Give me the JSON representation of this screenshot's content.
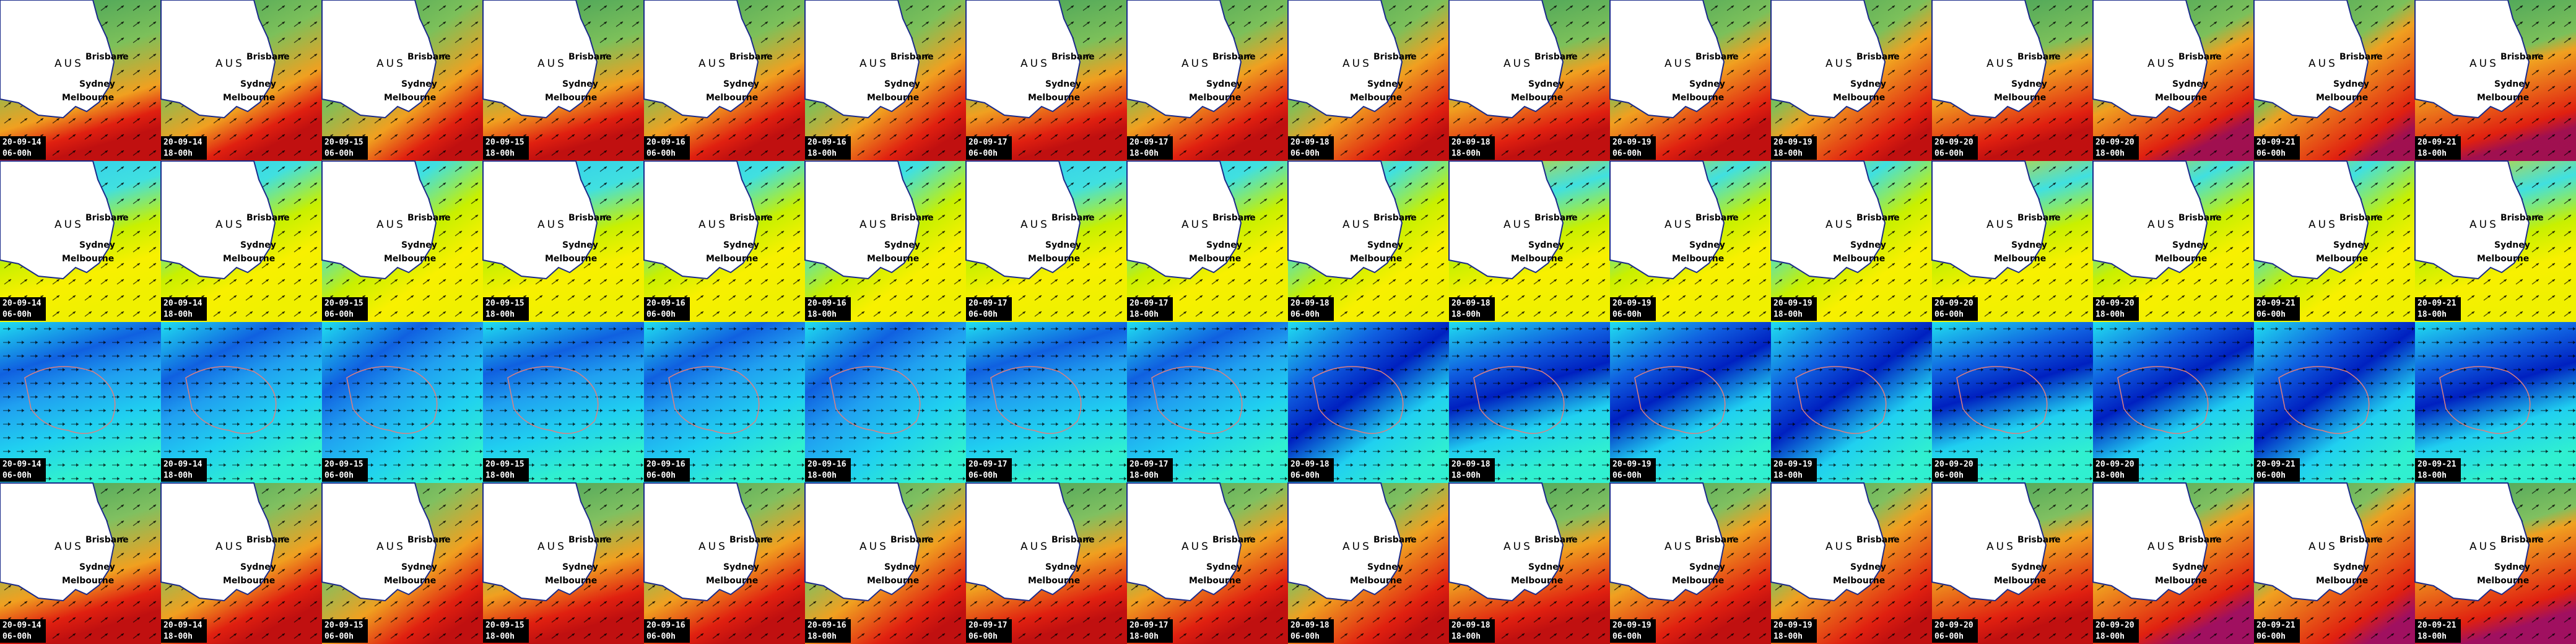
{
  "map_labels": {
    "country": "AUS",
    "city_north": "Brisbane",
    "city_east": "Sydney",
    "city_south": "Melbourne"
  },
  "rows": [
    {
      "tiles": [
        {
          "date": "20-09-14",
          "time": "06-00h"
        },
        {
          "date": "20-09-14",
          "time": "18-00h"
        },
        {
          "date": "20-09-15",
          "time": "06-00h"
        },
        {
          "date": "20-09-15",
          "time": "18-00h"
        },
        {
          "date": "20-09-16",
          "time": "06-00h"
        },
        {
          "date": "20-09-16",
          "time": "18-00h"
        },
        {
          "date": "20-09-17",
          "time": "06-00h"
        },
        {
          "date": "20-09-17",
          "time": "18-00h"
        },
        {
          "date": "20-09-18",
          "time": "06-00h"
        },
        {
          "date": "20-09-18",
          "time": "18-00h"
        },
        {
          "date": "20-09-19",
          "time": "06-00h"
        },
        {
          "date": "20-09-19",
          "time": "18-00h"
        },
        {
          "date": "20-09-20",
          "time": "06-00h"
        },
        {
          "date": "20-09-20",
          "time": "18-00h"
        },
        {
          "date": "20-09-21",
          "time": "06-00h"
        },
        {
          "date": "20-09-21",
          "time": "18-00h"
        }
      ]
    },
    {
      "tiles": [
        {
          "date": "20-09-14",
          "time": "06-00h"
        },
        {
          "date": "20-09-14",
          "time": "18-00h"
        },
        {
          "date": "20-09-15",
          "time": "06-00h"
        },
        {
          "date": "20-09-15",
          "time": "18-00h"
        },
        {
          "date": "20-09-16",
          "time": "06-00h"
        },
        {
          "date": "20-09-16",
          "time": "18-00h"
        },
        {
          "date": "20-09-17",
          "time": "06-00h"
        },
        {
          "date": "20-09-17",
          "time": "18-00h"
        },
        {
          "date": "20-09-18",
          "time": "06-00h"
        },
        {
          "date": "20-09-18",
          "time": "18-00h"
        },
        {
          "date": "20-09-19",
          "time": "06-00h"
        },
        {
          "date": "20-09-19",
          "time": "18-00h"
        },
        {
          "date": "20-09-20",
          "time": "06-00h"
        },
        {
          "date": "20-09-20",
          "time": "18-00h"
        },
        {
          "date": "20-09-21",
          "time": "06-00h"
        },
        {
          "date": "20-09-21",
          "time": "18-00h"
        }
      ]
    },
    {
      "tiles": [
        {
          "date": "20-09-14",
          "time": "06-00h"
        },
        {
          "date": "20-09-14",
          "time": "18-00h"
        },
        {
          "date": "20-09-15",
          "time": "06-00h"
        },
        {
          "date": "20-09-15",
          "time": "18-00h"
        },
        {
          "date": "20-09-16",
          "time": "06-00h"
        },
        {
          "date": "20-09-16",
          "time": "18-00h"
        },
        {
          "date": "20-09-17",
          "time": "06-00h"
        },
        {
          "date": "20-09-17",
          "time": "18-00h"
        },
        {
          "date": "20-09-18",
          "time": "06-00h"
        },
        {
          "date": "20-09-18",
          "time": "18-00h"
        },
        {
          "date": "20-09-19",
          "time": "06-00h"
        },
        {
          "date": "20-09-19",
          "time": "18-00h"
        },
        {
          "date": "20-09-20",
          "time": "06-00h"
        },
        {
          "date": "20-09-20",
          "time": "18-00h"
        },
        {
          "date": "20-09-21",
          "time": "06-00h"
        },
        {
          "date": "20-09-21",
          "time": "18-00h"
        }
      ]
    },
    {
      "tiles": [
        {
          "date": "20-09-14",
          "time": "06-00h"
        },
        {
          "date": "20-09-14",
          "time": "18-00h"
        },
        {
          "date": "20-09-15",
          "time": "06-00h"
        },
        {
          "date": "20-09-15",
          "time": "18-00h"
        },
        {
          "date": "20-09-16",
          "time": "06-00h"
        },
        {
          "date": "20-09-16",
          "time": "18-00h"
        },
        {
          "date": "20-09-17",
          "time": "06-00h"
        },
        {
          "date": "20-09-17",
          "time": "18-00h"
        },
        {
          "date": "20-09-18",
          "time": "06-00h"
        },
        {
          "date": "20-09-18",
          "time": "18-00h"
        },
        {
          "date": "20-09-19",
          "time": "06-00h"
        },
        {
          "date": "20-09-19",
          "time": "18-00h"
        },
        {
          "date": "20-09-20",
          "time": "06-00h"
        },
        {
          "date": "20-09-20",
          "time": "18-00h"
        },
        {
          "date": "20-09-21",
          "time": "06-00h"
        },
        {
          "date": "20-09-21",
          "time": "18-00h"
        }
      ]
    }
  ]
}
